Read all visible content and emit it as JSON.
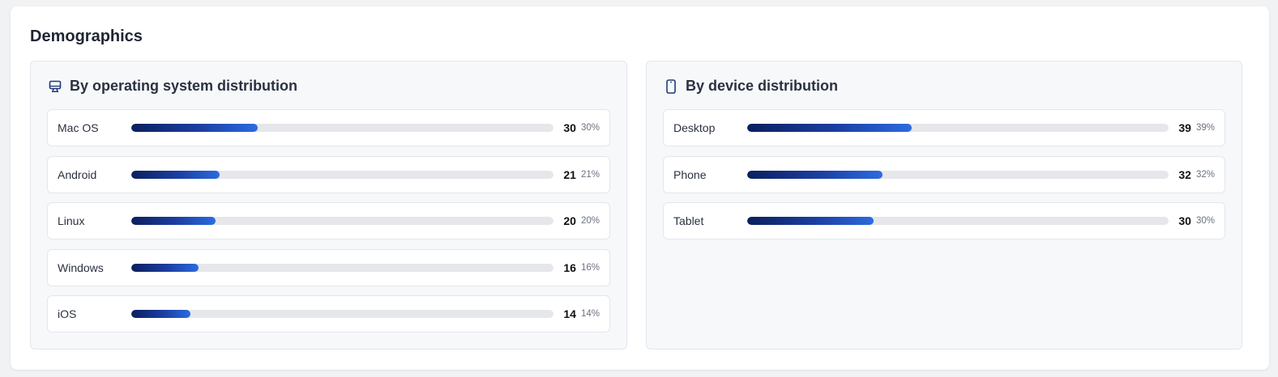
{
  "section": {
    "title": "Demographics"
  },
  "os_panel": {
    "title": "By operating system distribution",
    "icon": "monitor-icon",
    "rows": [
      {
        "label": "Mac OS",
        "count": "30",
        "percent": "30%",
        "fill": 0.3
      },
      {
        "label": "Android",
        "count": "21",
        "percent": "21%",
        "fill": 0.21
      },
      {
        "label": "Linux",
        "count": "20",
        "percent": "20%",
        "fill": 0.2
      },
      {
        "label": "Windows",
        "count": "16",
        "percent": "16%",
        "fill": 0.16
      },
      {
        "label": "iOS",
        "count": "14",
        "percent": "14%",
        "fill": 0.14
      }
    ]
  },
  "device_panel": {
    "title": "By device distribution",
    "icon": "phone-icon",
    "rows": [
      {
        "label": "Desktop",
        "count": "39",
        "percent": "39%",
        "fill": 0.39
      },
      {
        "label": "Phone",
        "count": "32",
        "percent": "32%",
        "fill": 0.32
      },
      {
        "label": "Tablet",
        "count": "30",
        "percent": "30%",
        "fill": 0.3
      }
    ]
  },
  "colors": {
    "bar_start": "#0c1f5e",
    "bar_end": "#2c6be0",
    "track": "#e5e7eb"
  }
}
